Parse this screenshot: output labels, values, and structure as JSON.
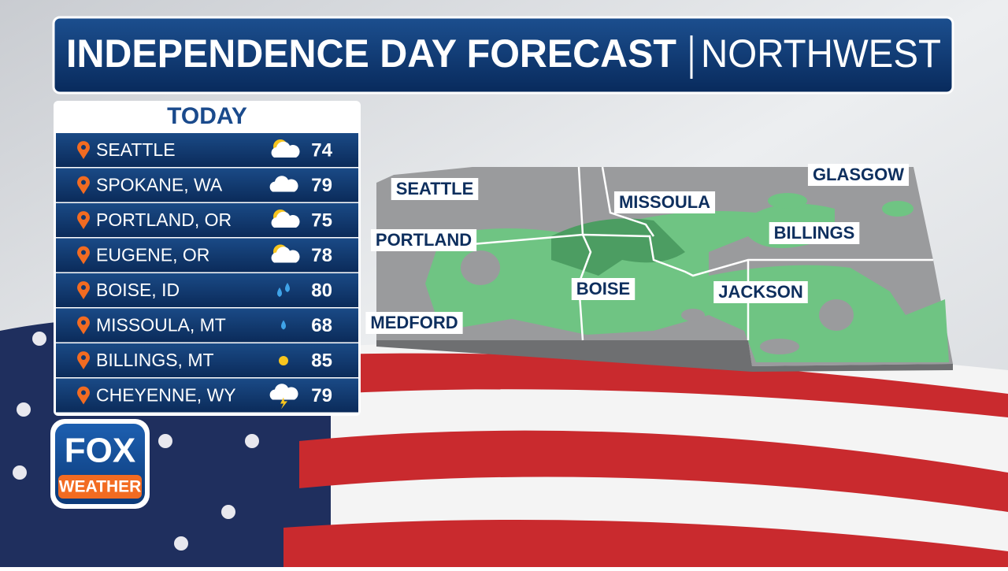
{
  "header": {
    "title": "INDEPENDENCE DAY FORECAST",
    "region": "NORTHWEST"
  },
  "panel": {
    "title": "TODAY",
    "rows": [
      {
        "city": "SEATTLE",
        "temp": 74
      },
      {
        "city": "SPOKANE, WA",
        "temp": 79
      },
      {
        "city": "PORTLAND, OR",
        "temp": 75
      },
      {
        "city": "EUGENE, OR",
        "temp": 78
      },
      {
        "city": "BOISE, ID",
        "temp": 80
      },
      {
        "city": "MISSOULA, MT",
        "temp": 68
      },
      {
        "city": "BILLINGS, MT",
        "temp": 85
      },
      {
        "city": "CHEYENNE, WY",
        "temp": 79
      }
    ]
  },
  "map": {
    "labels": [
      "SEATTLE",
      "PORTLAND",
      "MEDFORD",
      "BOISE",
      "MISSOULA",
      "JACKSON",
      "BILLINGS",
      "GLASGOW"
    ]
  },
  "logo": {
    "brand": "FOX",
    "product": "WEATHER"
  }
}
